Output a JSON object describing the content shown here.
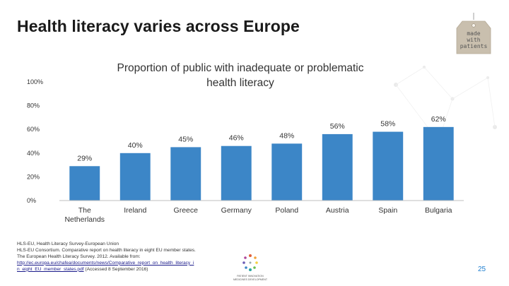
{
  "slide_title": "Health literacy varies across Europe",
  "tag_text": [
    "made",
    "with",
    "patients"
  ],
  "colors": {
    "bar": "#3c86c7",
    "background": "#ffffff",
    "grid_bg": "#e5e5e5",
    "page_number": "#1f7fd0"
  },
  "chart_data": {
    "type": "bar",
    "title": "Proportion of public with inadequate or problematic health literacy",
    "xlabel": "",
    "ylabel": "",
    "ylim": [
      0,
      100
    ],
    "yticks": [
      "0%",
      "20%",
      "40%",
      "60%",
      "80%",
      "100%"
    ],
    "categories": [
      "The Netherlands",
      "Ireland",
      "Greece",
      "Germany",
      "Poland",
      "Austria",
      "Spain",
      "Bulgaria"
    ],
    "values": [
      29,
      40,
      45,
      46,
      48,
      56,
      58,
      62
    ],
    "data_labels": [
      "29%",
      "40%",
      "45%",
      "46%",
      "48%",
      "56%",
      "58%",
      "62%"
    ],
    "grid": false
  },
  "references": {
    "line1": "HLS-EU, Health Literacy Survey-European Union",
    "line2": "HLS-EU Consortium. Comparative report on health literacy in eight EU member states.",
    "line3": "The European Health Literacy Survey. 2012. Available from:",
    "link": "http://ec.europa.eu/chafea/documents/news/Comparative_report_on_health_literacy_i n_eight_EU_member_states.pdf",
    "accessed": " (Accessed 8 September 2016)"
  },
  "footer_logo": {
    "line1": "PATIENT INNOVATION",
    "line2": "MEDICINES DEVELOPMENT"
  },
  "page_number": "25"
}
